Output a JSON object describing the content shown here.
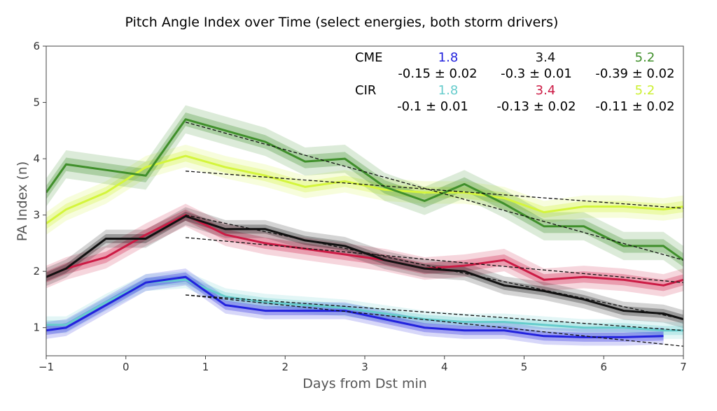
{
  "chart_data": {
    "type": "line",
    "title": "Pitch Angle Index over Time (select energies, both storm drivers)",
    "xlabel": "Days from Dst min",
    "ylabel": "PA Index (n)",
    "xlim": [
      -1,
      7
    ],
    "ylim": [
      0.5,
      6
    ],
    "xticks": [
      "−1",
      "0",
      "1",
      "2",
      "3",
      "4",
      "5",
      "6",
      "7"
    ],
    "yticks": [
      "1",
      "2",
      "3",
      "4",
      "5",
      "6"
    ],
    "grid": false,
    "legend": {
      "placement": "top-right",
      "groups": [
        {
          "label": "CME",
          "entries": [
            {
              "energy": "1.8",
              "slope": "-0.15 ± 0.02",
              "color": "#2222dd"
            },
            {
              "energy": "3.4",
              "slope": "-0.3 ± 0.01",
              "color": "#111111"
            },
            {
              "energy": "5.2",
              "slope": "-0.39 ± 0.02",
              "color": "#3f8f2a"
            }
          ]
        },
        {
          "label": "CIR",
          "entries": [
            {
              "energy": "1.8",
              "slope": "-0.1 ± 0.01",
              "color": "#66cccc"
            },
            {
              "energy": "3.4",
              "slope": "-0.13 ± 0.02",
              "color": "#cc1a44"
            },
            {
              "energy": "5.2",
              "slope": "-0.11 ± 0.02",
              "color": "#ccf030"
            }
          ]
        }
      ]
    },
    "series": [
      {
        "driver": "CIR",
        "energy": "5.2",
        "color": "#d4f53c",
        "x": [
          -1,
          -0.75,
          -0.25,
          0.25,
          0.75,
          1.25,
          1.75,
          2.25,
          2.75,
          3.25,
          3.75,
          4.25,
          4.75,
          5.25,
          5.75,
          6.25,
          6.75,
          7
        ],
        "y": [
          2.85,
          3.1,
          3.4,
          3.85,
          4.05,
          3.85,
          3.7,
          3.5,
          3.6,
          3.45,
          3.4,
          3.4,
          3.3,
          3.05,
          3.15,
          3.15,
          3.1,
          3.15
        ],
        "band_inner": 0.1,
        "band_outer": 0.2,
        "fit": {
          "x": [
            0.75,
            7
          ],
          "y": [
            3.78,
            3.12
          ]
        }
      },
      {
        "driver": "CME",
        "energy": "5.2",
        "color": "#3f8f2a",
        "x": [
          -1,
          -0.75,
          -0.25,
          0.25,
          0.75,
          1.25,
          1.75,
          2.25,
          2.75,
          3.25,
          3.75,
          4.25,
          4.75,
          5.25,
          5.75,
          6.25,
          6.75,
          7
        ],
        "y": [
          3.4,
          3.9,
          3.8,
          3.7,
          4.7,
          4.5,
          4.3,
          3.95,
          4.0,
          3.5,
          3.25,
          3.55,
          3.2,
          2.8,
          2.8,
          2.45,
          2.45,
          2.2
        ],
        "band_inner": 0.12,
        "band_outer": 0.25,
        "fit": {
          "x": [
            0.75,
            7
          ],
          "y": [
            4.65,
            2.2
          ]
        }
      },
      {
        "driver": "CIR",
        "energy": "3.4",
        "color": "#cc1a44",
        "x": [
          -1,
          -0.75,
          -0.25,
          0.25,
          0.75,
          1.25,
          1.75,
          2.25,
          2.75,
          3.25,
          3.75,
          4.25,
          4.75,
          5.25,
          5.75,
          6.25,
          6.75,
          7
        ],
        "y": [
          1.9,
          2.05,
          2.25,
          2.65,
          3.0,
          2.65,
          2.5,
          2.4,
          2.3,
          2.2,
          2.05,
          2.1,
          2.2,
          1.85,
          1.9,
          1.85,
          1.75,
          1.85
        ],
        "band_inner": 0.1,
        "band_outer": 0.2,
        "fit": {
          "x": [
            0.75,
            7
          ],
          "y": [
            2.6,
            1.8
          ]
        }
      },
      {
        "driver": "CME",
        "energy": "3.4",
        "color": "#111111",
        "x": [
          -1,
          -0.75,
          -0.25,
          0.25,
          0.75,
          1.25,
          1.75,
          2.25,
          2.75,
          3.25,
          3.75,
          4.25,
          4.75,
          5.25,
          5.75,
          6.25,
          6.75,
          7
        ],
        "y": [
          1.9,
          2.05,
          2.58,
          2.58,
          2.98,
          2.75,
          2.75,
          2.55,
          2.45,
          2.2,
          2.05,
          2.0,
          1.75,
          1.65,
          1.5,
          1.3,
          1.25,
          1.15
        ],
        "band_inner": 0.08,
        "band_outer": 0.16,
        "fit": {
          "x": [
            0.75,
            7
          ],
          "y": [
            3.0,
            1.15
          ]
        }
      },
      {
        "driver": "CIR",
        "energy": "1.8",
        "color": "#66cccc",
        "x": [
          -1,
          -0.75,
          -0.25,
          0.25,
          0.75,
          1.25,
          1.75,
          2.25,
          2.75,
          3.25,
          3.75,
          4.25,
          4.75,
          5.25,
          5.75,
          6.25,
          6.75,
          7
        ],
        "y": [
          1.05,
          1.05,
          1.45,
          1.8,
          1.85,
          1.55,
          1.45,
          1.4,
          1.35,
          1.25,
          1.15,
          1.1,
          1.1,
          1.05,
          1.0,
          1.0,
          0.95,
          0.95
        ],
        "band_inner": 0.08,
        "band_outer": 0.15,
        "fit": {
          "x": [
            0.75,
            7
          ],
          "y": [
            1.58,
            0.95
          ]
        }
      },
      {
        "driver": "CME",
        "energy": "1.8",
        "color": "#2222dd",
        "x": [
          -1,
          -0.75,
          -0.25,
          0.25,
          0.75,
          1.25,
          1.75,
          2.25,
          2.75,
          3.25,
          3.75,
          4.25,
          4.75,
          5.25,
          5.75,
          6.25,
          6.75
        ],
        "y": [
          0.95,
          1.0,
          1.4,
          1.8,
          1.9,
          1.4,
          1.3,
          1.3,
          1.3,
          1.15,
          1.0,
          0.95,
          0.95,
          0.85,
          0.83,
          0.83,
          0.85
        ],
        "band_inner": 0.08,
        "band_outer": 0.15,
        "fit": {
          "x": [
            0.75,
            7
          ],
          "y": [
            1.58,
            0.67
          ]
        }
      }
    ]
  }
}
